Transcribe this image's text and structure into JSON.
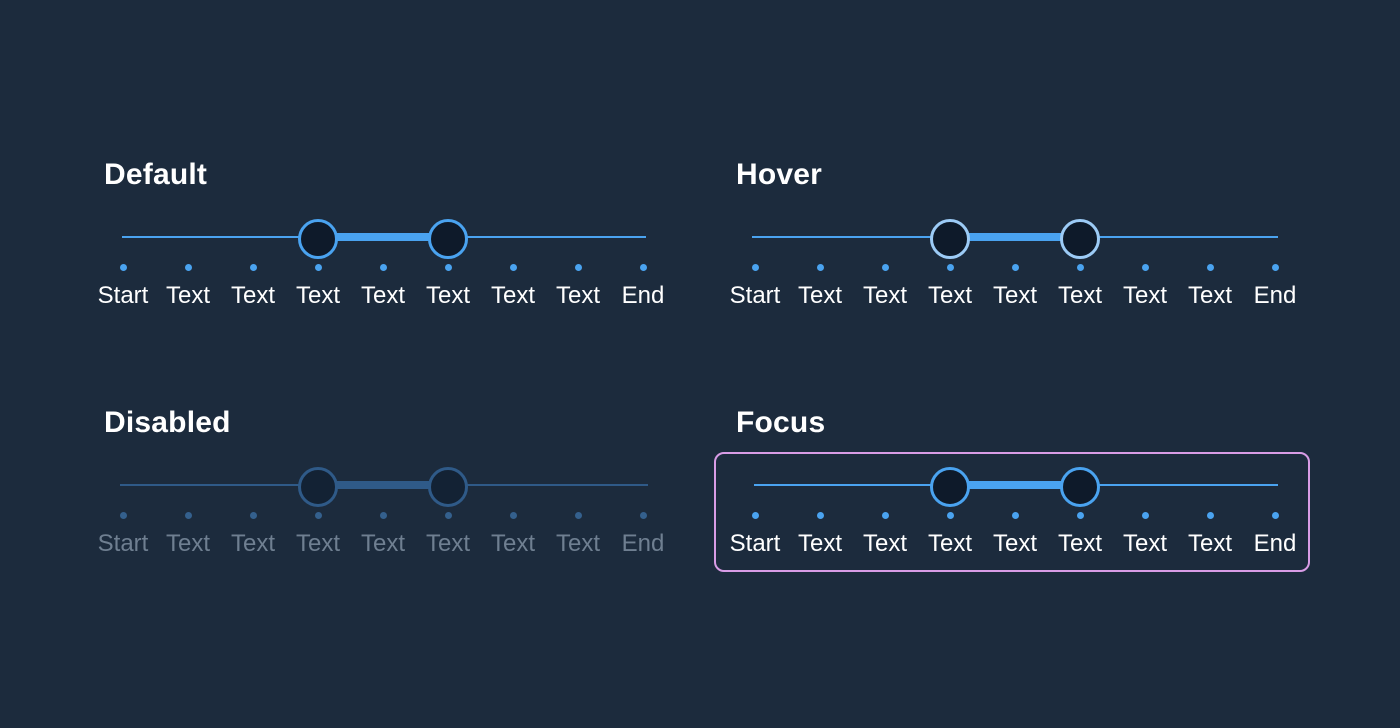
{
  "colors": {
    "background": "#1c2b3d",
    "accent": "#4aa3f0",
    "thumb_fill": "#0e1a2a",
    "hover_ring": "#9ccbf6",
    "disabled_accent": "#2f5a88",
    "disabled_text": "#6f7f91",
    "focus_ring": "#d89ce6"
  },
  "states": {
    "default": {
      "title": "Default",
      "labels": [
        "Start",
        "Text",
        "Text",
        "Text",
        "Text",
        "Text",
        "Text",
        "Text",
        "End"
      ],
      "range": {
        "low_index": 3,
        "high_index": 5
      }
    },
    "hover": {
      "title": "Hover",
      "labels": [
        "Start",
        "Text",
        "Text",
        "Text",
        "Text",
        "Text",
        "Text",
        "Text",
        "End"
      ],
      "range": {
        "low_index": 3,
        "high_index": 5
      }
    },
    "disabled": {
      "title": "Disabled",
      "labels": [
        "Start",
        "Text",
        "Text",
        "Text",
        "Text",
        "Text",
        "Text",
        "Text",
        "End"
      ],
      "range": {
        "low_index": 3,
        "high_index": 5
      }
    },
    "focus": {
      "title": "Focus",
      "labels": [
        "Start",
        "Text",
        "Text",
        "Text",
        "Text",
        "Text",
        "Text",
        "Text",
        "End"
      ],
      "range": {
        "low_index": 3,
        "high_index": 5
      }
    }
  }
}
